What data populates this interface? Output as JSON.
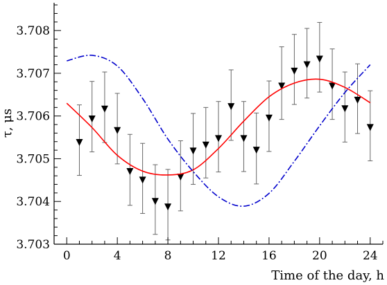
{
  "chart_data": {
    "type": "scatter",
    "xlabel": "Time of the day, h",
    "ylabel": "τ, μs",
    "xlim": [
      -1,
      25
    ],
    "ylim": [
      3.703,
      3.70865
    ],
    "x_ticks": [
      0,
      4,
      8,
      12,
      16,
      20,
      24
    ],
    "x_tick_labels": [
      "0",
      "4",
      "8",
      "12",
      "16",
      "20",
      "24"
    ],
    "y_ticks": [
      3.703,
      3.704,
      3.705,
      3.706,
      3.707,
      3.708
    ],
    "y_tick_labels": [
      "3.703",
      "3.704",
      "3.705",
      "3.706",
      "3.707",
      "3.708"
    ],
    "grid": false,
    "series": [
      {
        "kind": "points-with-error-bars",
        "marker": "down-triangle",
        "color": "#000000",
        "x": [
          1,
          2,
          3,
          4,
          5,
          6,
          7,
          8,
          9,
          10,
          11,
          12,
          13,
          14,
          15,
          16,
          17,
          18,
          19,
          20,
          21,
          22,
          23,
          24
        ],
        "y": [
          3.70538,
          3.70593,
          3.70616,
          3.70566,
          3.7047,
          3.7045,
          3.704,
          3.70387,
          3.70457,
          3.70518,
          3.70532,
          3.70547,
          3.70622,
          3.70547,
          3.7052,
          3.70595,
          3.7067,
          3.70705,
          3.7072,
          3.70733,
          3.7067,
          3.70617,
          3.70637,
          3.70573
        ],
        "err_low": [
          3.70461,
          3.70516,
          3.70538,
          3.70488,
          3.70391,
          3.70372,
          3.70323,
          3.7031,
          3.70378,
          3.7044,
          3.70455,
          3.70469,
          3.70543,
          3.7047,
          3.70441,
          3.70517,
          3.70592,
          3.70627,
          3.70642,
          3.70656,
          3.70592,
          3.70539,
          3.70559,
          3.70495
        ],
        "err_high": [
          3.70626,
          3.70681,
          3.70703,
          3.70653,
          3.70557,
          3.70536,
          3.70486,
          3.70475,
          3.70542,
          3.70606,
          3.7062,
          3.70634,
          3.70708,
          3.70634,
          3.70607,
          3.70682,
          3.70762,
          3.70791,
          3.70805,
          3.70819,
          3.70757,
          3.70703,
          3.70722,
          3.70659
        ]
      },
      {
        "kind": "curve",
        "style": "solid",
        "color": "#ff0000",
        "x": [
          0,
          2,
          4,
          6,
          8,
          10,
          12,
          14,
          16,
          18,
          20,
          22,
          24
        ],
        "y": [
          3.7063,
          3.70573,
          3.70508,
          3.70471,
          3.70462,
          3.70474,
          3.70524,
          3.70588,
          3.70645,
          3.70677,
          3.70686,
          3.70667,
          3.70631
        ]
      },
      {
        "kind": "curve",
        "style": "dash-dot",
        "color": "#0000cc",
        "x": [
          0,
          2,
          4,
          6,
          8,
          10,
          12,
          14,
          16,
          18,
          20,
          22,
          24
        ],
        "y": [
          3.70729,
          3.70742,
          3.70717,
          3.70641,
          3.70546,
          3.7047,
          3.70411,
          3.70389,
          3.70419,
          3.70494,
          3.70577,
          3.70655,
          3.7072
        ]
      }
    ]
  }
}
